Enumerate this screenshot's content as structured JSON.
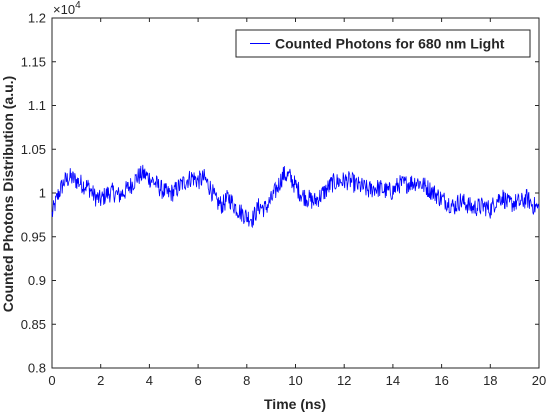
{
  "chart_data": {
    "type": "line",
    "xlabel": "Time (ns)",
    "ylabel": "Counted Photons Distribution (a.u.)",
    "exponent_label": "×10",
    "exponent_power": "4",
    "xlim": [
      0,
      20
    ],
    "ylim": [
      0.8,
      1.2
    ],
    "xticks": [
      "0",
      "2",
      "4",
      "6",
      "8",
      "10",
      "12",
      "14",
      "16",
      "18",
      "20"
    ],
    "yticks": [
      "0.8",
      "0.85",
      "0.9",
      "0.95",
      "1",
      "1.05",
      "1.1",
      "1.15",
      "1.2"
    ],
    "grid": false,
    "legend_position": "top-right",
    "series": [
      {
        "name": "Counted Photons for 680 nm Light",
        "color": "#0000ff",
        "x": [
          0,
          0.25,
          0.5,
          0.75,
          1,
          1.25,
          1.5,
          1.75,
          2,
          2.25,
          2.5,
          2.75,
          3,
          3.25,
          3.5,
          3.75,
          4,
          4.25,
          4.5,
          4.75,
          5,
          5.25,
          5.5,
          5.75,
          6,
          6.25,
          6.5,
          6.75,
          7,
          7.25,
          7.5,
          7.75,
          8,
          8.25,
          8.5,
          8.75,
          9,
          9.25,
          9.5,
          9.75,
          10,
          10.25,
          10.5,
          10.75,
          11,
          11.25,
          11.5,
          11.75,
          12,
          12.25,
          12.5,
          12.75,
          13,
          13.25,
          13.5,
          13.75,
          14,
          14.25,
          14.5,
          14.75,
          15,
          15.25,
          15.5,
          15.75,
          16,
          16.25,
          16.5,
          16.75,
          17,
          17.25,
          17.5,
          17.75,
          18,
          18.25,
          18.5,
          18.75,
          19,
          19.25,
          19.5,
          19.75,
          20
        ],
        "y": [
          0.975,
          0.998,
          1.013,
          1.018,
          1.014,
          1.01,
          1.007,
          0.996,
          0.992,
          0.999,
          1.001,
          0.997,
          1.002,
          1.009,
          1.018,
          1.022,
          1.017,
          1.011,
          1.004,
          0.999,
          1.001,
          1.008,
          1.014,
          1.018,
          1.014,
          1.017,
          1.006,
          0.99,
          0.986,
          0.995,
          0.985,
          0.978,
          0.973,
          0.971,
          0.985,
          0.982,
          0.992,
          1.006,
          1.021,
          1.019,
          1.008,
          0.998,
          0.994,
          0.99,
          0.996,
          1.003,
          1.011,
          1.013,
          1.014,
          1.014,
          1.009,
          1.007,
          1.003,
          1.006,
          1.005,
          1.002,
          1.002,
          1.01,
          1.01,
          1.012,
          1.013,
          1.009,
          1.004,
          0.999,
          0.993,
          0.99,
          0.984,
          0.991,
          0.988,
          0.983,
          0.984,
          0.985,
          0.981,
          0.992,
          0.996,
          0.987,
          0.989,
          0.989,
          0.994,
          0.986,
          0.982
        ]
      }
    ]
  }
}
